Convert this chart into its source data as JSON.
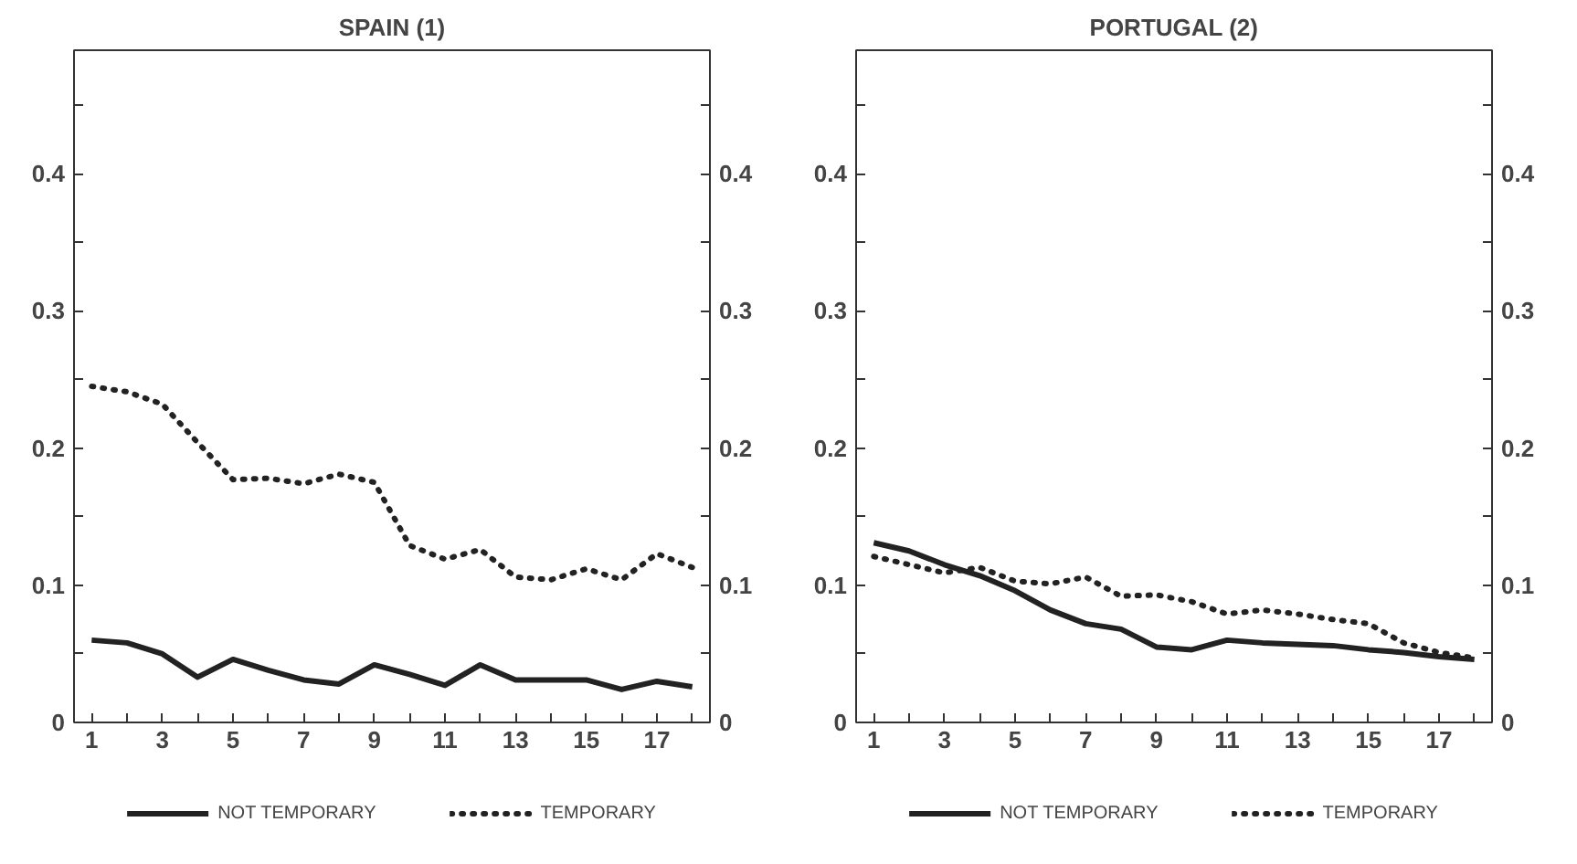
{
  "chart_data": [
    {
      "type": "line",
      "title": "SPAIN (1)",
      "x": [
        1,
        2,
        3,
        4,
        5,
        6,
        7,
        8,
        9,
        10,
        11,
        12,
        13,
        14,
        15,
        16,
        17,
        18
      ],
      "series": [
        {
          "name": "NOT TEMPORARY",
          "color": "#222222",
          "line_style": "solid",
          "values": [
            0.06,
            0.058,
            0.05,
            0.033,
            0.046,
            0.038,
            0.031,
            0.028,
            0.042,
            0.035,
            0.027,
            0.042,
            0.031,
            0.031,
            0.031,
            0.024,
            0.03,
            0.026
          ]
        },
        {
          "name": "TEMPORARY",
          "color": "#222222",
          "line_style": "dotted",
          "values": [
            0.245,
            0.241,
            0.232,
            0.204,
            0.177,
            0.178,
            0.174,
            0.181,
            0.175,
            0.129,
            0.119,
            0.126,
            0.106,
            0.104,
            0.112,
            0.104,
            0.123,
            0.113
          ]
        }
      ],
      "xlim": [
        0.5,
        18.5
      ],
      "xticks": [
        1,
        {
          "value": 2,
          "label": null
        },
        3,
        {
          "value": 4,
          "label": null
        },
        5,
        {
          "value": 6,
          "label": null
        },
        7,
        {
          "value": 8,
          "label": null
        },
        9,
        {
          "value": 10,
          "label": null
        },
        11,
        {
          "value": 12,
          "label": null
        },
        13,
        {
          "value": 14,
          "label": null
        },
        15,
        {
          "value": 16,
          "label": null
        },
        17,
        {
          "value": 18,
          "label": null
        }
      ],
      "ylim": [
        0,
        0.49
      ],
      "yticks": [
        0,
        {
          "value": 0.05,
          "label": null
        },
        0.1,
        {
          "value": 0.15,
          "label": null
        },
        0.2,
        {
          "value": 0.25,
          "label": null
        },
        0.3,
        {
          "value": 0.35,
          "label": null
        },
        0.4,
        {
          "value": 0.45,
          "label": null
        }
      ],
      "y2lim": [
        0,
        0.49
      ],
      "y2ticks": [
        0,
        {
          "value": 0.05,
          "label": null
        },
        0.1,
        {
          "value": 0.15,
          "label": null
        },
        0.2,
        {
          "value": 0.25,
          "label": null
        },
        0.3,
        {
          "value": 0.35,
          "label": null
        },
        0.4,
        {
          "value": 0.45,
          "label": null
        }
      ],
      "grid": false,
      "legend": "bottom"
    },
    {
      "type": "line",
      "title": "PORTUGAL (2)",
      "x": [
        1,
        2,
        3,
        4,
        5,
        6,
        7,
        8,
        9,
        10,
        11,
        12,
        13,
        14,
        15,
        16,
        17,
        18
      ],
      "series": [
        {
          "name": "NOT TEMPORARY",
          "color": "#222222",
          "line_style": "solid",
          "values": [
            0.131,
            0.125,
            0.115,
            0.107,
            0.096,
            0.082,
            0.072,
            0.068,
            0.055,
            0.053,
            0.06,
            0.058,
            0.057,
            0.056,
            0.053,
            0.051,
            0.048,
            0.046
          ]
        },
        {
          "name": "TEMPORARY",
          "color": "#222222",
          "line_style": "dotted",
          "values": [
            0.121,
            0.115,
            0.109,
            0.113,
            0.103,
            0.101,
            0.106,
            0.092,
            0.093,
            0.088,
            0.079,
            0.082,
            0.079,
            0.075,
            0.072,
            0.058,
            0.051,
            0.047
          ]
        }
      ],
      "xlim": [
        0.5,
        18.5
      ],
      "xticks": [
        1,
        {
          "value": 2,
          "label": null
        },
        3,
        {
          "value": 4,
          "label": null
        },
        5,
        {
          "value": 6,
          "label": null
        },
        7,
        {
          "value": 8,
          "label": null
        },
        9,
        {
          "value": 10,
          "label": null
        },
        11,
        {
          "value": 12,
          "label": null
        },
        13,
        {
          "value": 14,
          "label": null
        },
        15,
        {
          "value": 16,
          "label": null
        },
        17,
        {
          "value": 18,
          "label": null
        }
      ],
      "ylim": [
        0,
        0.49
      ],
      "yticks": [
        0,
        {
          "value": 0.05,
          "label": null
        },
        0.1,
        {
          "value": 0.15,
          "label": null
        },
        0.2,
        {
          "value": 0.25,
          "label": null
        },
        0.3,
        {
          "value": 0.35,
          "label": null
        },
        0.4,
        {
          "value": 0.45,
          "label": null
        }
      ],
      "y2lim": [
        0,
        0.49
      ],
      "y2ticks": [
        0,
        {
          "value": 0.05,
          "label": null
        },
        0.1,
        {
          "value": 0.15,
          "label": null
        },
        0.2,
        {
          "value": 0.25,
          "label": null
        },
        0.3,
        {
          "value": 0.35,
          "label": null
        },
        0.4,
        {
          "value": 0.45,
          "label": null
        }
      ],
      "grid": false,
      "legend": "bottom"
    }
  ]
}
